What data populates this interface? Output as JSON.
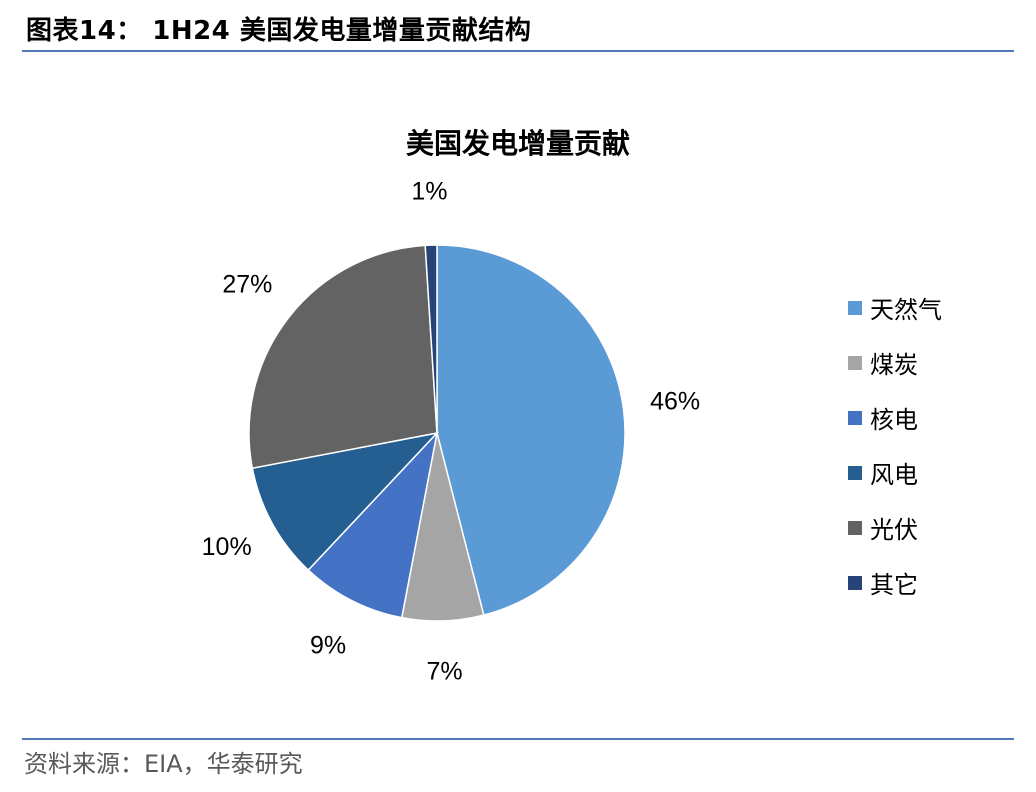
{
  "figure_title": "图表14： 1H24 美国发电量增量贡献结构",
  "source": "资料来源：EIA，华泰研究",
  "chart_data": {
    "type": "pie",
    "title": "美国发电增量贡献",
    "slices": [
      {
        "name": "天然气",
        "value": 46,
        "label": "46%",
        "color": "#5b9bd5"
      },
      {
        "name": "煤炭",
        "value": 7,
        "label": "7%",
        "color": "#a5a5a5"
      },
      {
        "name": "核电",
        "value": 9,
        "label": "9%",
        "color": "#4472c4"
      },
      {
        "name": "风电",
        "value": 10,
        "label": "10%",
        "color": "#255e91"
      },
      {
        "name": "光伏",
        "value": 27,
        "label": "27%",
        "color": "#636363"
      },
      {
        "name": "其它",
        "value": 1,
        "label": "1%",
        "color": "#264478"
      }
    ],
    "legend_placement": "right"
  }
}
